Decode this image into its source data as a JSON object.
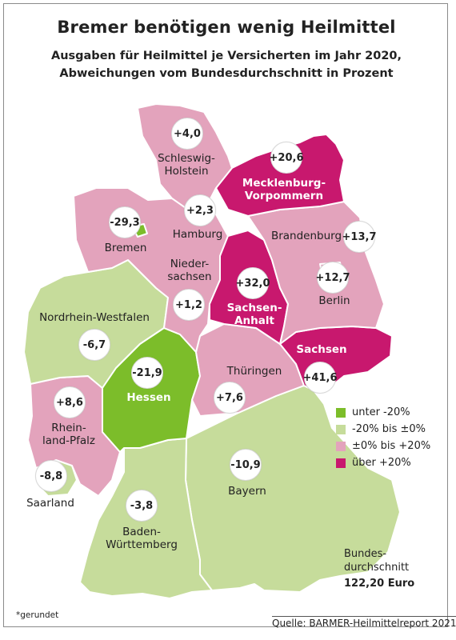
{
  "title": "Bremer benötigen wenig Heilmittel",
  "subtitle_line1": "Ausgaben für Heilmittel je Versicherten im Jahr 2020,",
  "subtitle_line2": "Abweichungen vom Bundesdurchschnitt in Prozent",
  "colors": {
    "dark_green": "#7cbd2a",
    "light_green": "#c6dc9b",
    "light_pink": "#e3a3bc",
    "magenta": "#c8186e",
    "border": "#ffffff"
  },
  "legend": [
    {
      "label": "unter -20%",
      "color": "#7cbd2a"
    },
    {
      "label": "-20% bis ±0%",
      "color": "#c6dc9b"
    },
    {
      "label": "±0% bis +20%",
      "color": "#e3a3bc"
    },
    {
      "label": "über +20%",
      "color": "#c8186e"
    }
  ],
  "regions": {
    "schleswig_holstein": {
      "name": "Schleswig-\nHolstein",
      "value": "+4,0"
    },
    "mecklenburg_vorpommern": {
      "name": "Mecklenburg-\nVorpommern",
      "value": "+20,6"
    },
    "hamburg": {
      "name": "Hamburg",
      "value": "+2,3"
    },
    "bremen": {
      "name": "Bremen",
      "value": "-29,3"
    },
    "brandenburg": {
      "name": "Brandenburg",
      "value": "+13,7"
    },
    "niedersachsen": {
      "name": "Nieder-\nsachsen",
      "value": "+1,2"
    },
    "sachsen_anhalt": {
      "name": "Sachsen-\nAnhalt",
      "value": "+32,0"
    },
    "berlin": {
      "name": "Berlin",
      "value": "+12,7"
    },
    "nordrhein_westfalen": {
      "name": "Nordrhein-Westfalen",
      "value": "-6,7"
    },
    "sachsen": {
      "name": "Sachsen",
      "value": "+41,6"
    },
    "hessen": {
      "name": "Hessen",
      "value": "-21,9"
    },
    "thueringen": {
      "name": "Thüringen",
      "value": "+7,6"
    },
    "rheinland_pfalz": {
      "name": "Rhein-\nland-Pfalz",
      "value": "+8,6"
    },
    "saarland": {
      "name": "Saarland",
      "value": "-8,8"
    },
    "bayern": {
      "name": "Bayern",
      "value": "-10,9"
    },
    "baden_wuerttemberg": {
      "name": "Baden-\nWürttemberg",
      "value": "-3,8"
    }
  },
  "reference": {
    "label_line1": "Bundes-",
    "label_line2": "durchschnitt",
    "value": "122,20 Euro"
  },
  "footnote": "*gerundet",
  "source": "Quelle: BARMER-Heilmittelreport 2021"
}
